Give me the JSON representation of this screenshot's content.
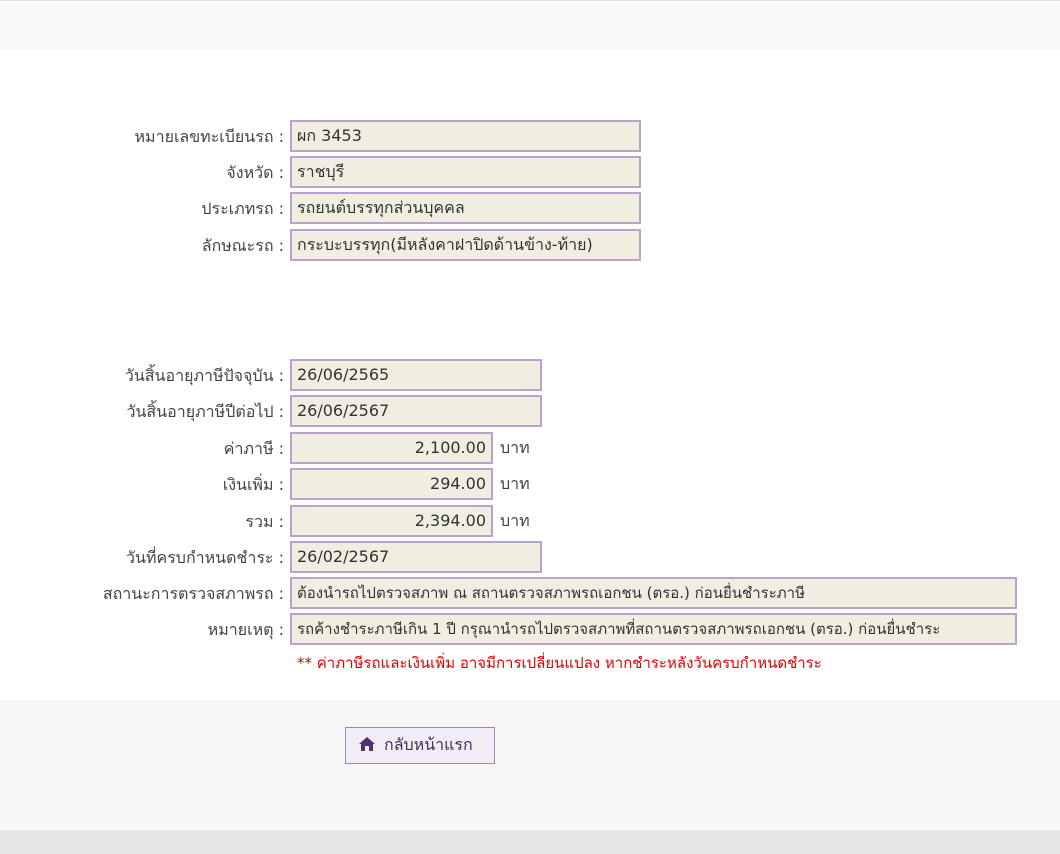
{
  "vehicle": {
    "plate_label": "หมายเลขทะเบียนรถ :",
    "plate_value": "ผก 3453",
    "province_label": "จังหวัด :",
    "province_value": "ราชบุรี",
    "type_label": "ประเภทรถ :",
    "type_value": "รถยนต์บรรทุกส่วนบุคคล",
    "body_label": "ลักษณะรถ :",
    "body_value": "กระบะบรรทุก(มีหลังคาฝาปิดด้านข้าง-ท้าย)"
  },
  "tax": {
    "current_expiry_label": "วันสิ้นอายุภาษีปัจจุบัน :",
    "current_expiry_value": "26/06/2565",
    "next_expiry_label": "วันสิ้นอายุภาษีปีต่อไป :",
    "next_expiry_value": "26/06/2567",
    "fee_label": "ค่าภาษี :",
    "fee_value": "2,100.00",
    "surcharge_label": "เงินเพิ่ม :",
    "surcharge_value": "294.00",
    "total_label": "รวม :",
    "total_value": "2,394.00",
    "unit": "บาท",
    "due_label": "วันที่ครบกำหนดชำระ :",
    "due_value": "26/02/2567",
    "inspection_label": "สถานะการตรวจสภาพรถ :",
    "inspection_value": "ต้องนำรถไปตรวจสภาพ ณ สถานตรวจสภาพรถเอกชน (ตรอ.) ก่อนยื่นชำระภาษี",
    "remark_label": "หมายเหตุ :",
    "remark_value": "รถค้างชำระภาษีเกิน 1 ปี กรุณานำรถไปตรวจสภาพที่สถานตรวจสภาพรถเอกชน (ตรอ.) ก่อนยื่นชำระ",
    "warning": "** ค่าภาษีรถและเงินเพิ่ม อาจมีการเปลี่ยนแปลง หากชำระหลังวันครบกำหนดชำระ"
  },
  "actions": {
    "home_label": "กลับหน้าแรก",
    "home_icon": "home-icon"
  },
  "colors": {
    "field_bg": "#efeee0",
    "field_border": "#b9a3cc",
    "warning": "#e00000",
    "accent": "#4a2a60"
  }
}
